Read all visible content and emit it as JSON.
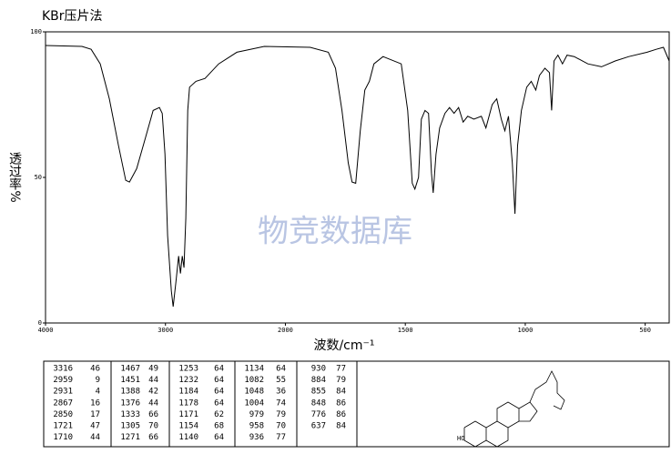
{
  "chart_data": {
    "type": "line",
    "title": "KBr压片法",
    "xlabel": "波数/cm⁻¹",
    "ylabel": "透过率%",
    "xlim": [
      4000,
      400
    ],
    "xticks": [
      4000,
      3000,
      2000,
      1500,
      1000,
      500
    ],
    "xbreak": {
      "at": 2000,
      "factor": 2
    },
    "ylim": [
      0,
      100
    ],
    "yticks": [
      0,
      50,
      100
    ],
    "color": "#000000",
    "x": [
      4000,
      3696,
      3620,
      3544,
      3468,
      3392,
      3331,
      3300,
      3240,
      3164,
      3103,
      3050,
      3027,
      3004,
      2982,
      2951,
      2936,
      2913,
      2890,
      2875,
      2860,
      2845,
      2830,
      2814,
      2799,
      2746,
      2670,
      2556,
      2404,
      2176,
      1897,
      1821,
      1791,
      1764,
      1738,
      1722,
      1707,
      1688,
      1669,
      1650,
      1631,
      1593,
      1517,
      1490,
      1471,
      1460,
      1445,
      1433,
      1418,
      1403,
      1391,
      1384,
      1372,
      1357,
      1335,
      1316,
      1297,
      1278,
      1259,
      1240,
      1214,
      1183,
      1164,
      1138,
      1119,
      1100,
      1085,
      1070,
      1054,
      1043,
      1032,
      1016,
      994,
      975,
      956,
      941,
      918,
      899,
      890,
      880,
      864,
      845,
      826,
      796,
      739,
      682,
      625,
      568,
      492,
      454,
      424,
      400
    ],
    "values": [
      95.3,
      95,
      94,
      89,
      77,
      61,
      49,
      48.4,
      53,
      64,
      73,
      74,
      72,
      58,
      30,
      11,
      5.6,
      14,
      23,
      17,
      23,
      19,
      36,
      73,
      81,
      83,
      84,
      89,
      93,
      95,
      94.7,
      93,
      87.5,
      73,
      55,
      48.4,
      48,
      66,
      80,
      83,
      89,
      91.5,
      89,
      73,
      48,
      46,
      50,
      70,
      73,
      72,
      51.5,
      44.7,
      58,
      67,
      72,
      74,
      72,
      74,
      69,
      71,
      70,
      71,
      67,
      75,
      77,
      70,
      66,
      71,
      55,
      37.5,
      61,
      73,
      81,
      83,
      80,
      85,
      87.5,
      86,
      73,
      90,
      92,
      89,
      92,
      91.5,
      89,
      88,
      90,
      91.5,
      93,
      94,
      94.7,
      90
    ]
  },
  "watermark": "物竞数据库",
  "table": [
    [
      [
        3316,
        46
      ],
      [
        2959,
        9
      ],
      [
        2931,
        4
      ],
      [
        2867,
        16
      ],
      [
        2850,
        17
      ],
      [
        1721,
        47
      ],
      [
        1710,
        44
      ]
    ],
    [
      [
        1467,
        49
      ],
      [
        1451,
        44
      ],
      [
        1388,
        42
      ],
      [
        1376,
        44
      ],
      [
        1333,
        66
      ],
      [
        1305,
        70
      ],
      [
        1271,
        66
      ]
    ],
    [
      [
        1253,
        64
      ],
      [
        1232,
        64
      ],
      [
        1184,
        64
      ],
      [
        1178,
        64
      ],
      [
        1171,
        62
      ],
      [
        1154,
        68
      ],
      [
        1140,
        64
      ]
    ],
    [
      [
        1134,
        64
      ],
      [
        1082,
        55
      ],
      [
        1048,
        36
      ],
      [
        1004,
        74
      ],
      [
        979,
        79
      ],
      [
        958,
        70
      ],
      [
        936,
        77
      ]
    ],
    [
      [
        930,
        77
      ],
      [
        884,
        79
      ],
      [
        855,
        84
      ],
      [
        848,
        86
      ],
      [
        776,
        86
      ],
      [
        637,
        84
      ]
    ]
  ],
  "structure": {
    "labels": [
      "HO"
    ]
  }
}
